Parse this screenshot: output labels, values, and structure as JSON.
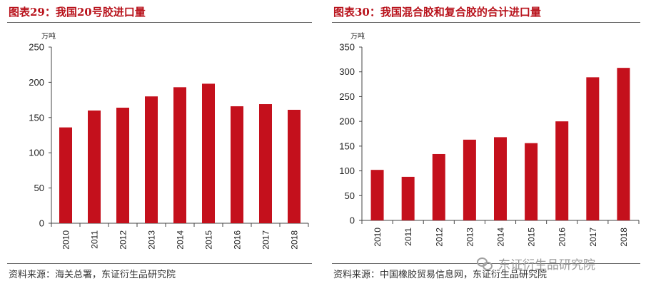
{
  "charts": [
    {
      "figure_title": "图表29：我国20号胶进口量",
      "source": "资料来源：海关总署，东证衍生品研究院",
      "unit": "万吨",
      "chart_data": {
        "type": "bar",
        "categories": [
          "2010",
          "2011",
          "2012",
          "2013",
          "2014",
          "2015",
          "2016",
          "2017",
          "2018"
        ],
        "values": [
          136,
          160,
          164,
          180,
          193,
          198,
          166,
          169,
          161
        ],
        "ylim": [
          0,
          250
        ],
        "yticks": [
          0,
          50,
          100,
          150,
          200,
          250
        ],
        "color": "#c4101c",
        "grid": false
      }
    },
    {
      "figure_title": "图表30：我国混合胶和复合胶的合计进口量",
      "source": "资料来源：中国橡胶贸易信息网，东证衍生品研究院",
      "unit": "万吨",
      "chart_data": {
        "type": "bar",
        "categories": [
          "2010",
          "2011",
          "2012",
          "2013",
          "2014",
          "2015",
          "2016",
          "2017",
          "2018"
        ],
        "values": [
          102,
          88,
          134,
          163,
          168,
          156,
          200,
          289,
          308
        ],
        "ylim": [
          0,
          350
        ],
        "yticks": [
          0,
          50,
          100,
          150,
          200,
          250,
          300,
          350
        ],
        "color": "#c4101c",
        "grid": false
      }
    }
  ],
  "watermark": {
    "text": "东证衍生品研究院",
    "icon": "wechat-icon"
  }
}
